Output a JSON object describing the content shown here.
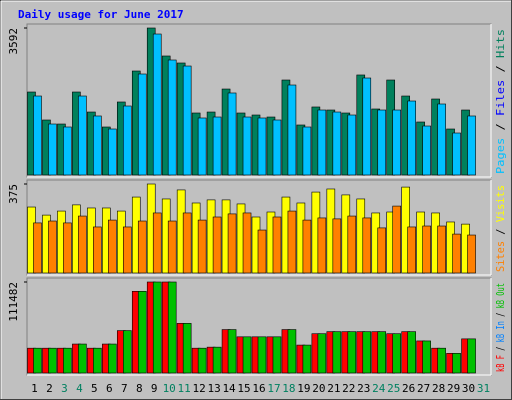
{
  "chart_data": [
    {
      "type": "bar",
      "title": "Daily usage for June 2017",
      "categories": [
        "1",
        "2",
        "3",
        "4",
        "5",
        "6",
        "7",
        "8",
        "9",
        "10",
        "11",
        "12",
        "13",
        "14",
        "15",
        "16",
        "17",
        "18",
        "19",
        "20",
        "21",
        "22",
        "23",
        "24",
        "25",
        "26",
        "27",
        "28",
        "29",
        "30",
        "31"
      ],
      "category_colors": [
        "#000000",
        "#000000",
        "#008060",
        "#008060",
        "#000000",
        "#000000",
        "#000000",
        "#000000",
        "#000000",
        "#008060",
        "#008060",
        "#000000",
        "#000000",
        "#000000",
        "#000000",
        "#000000",
        "#008060",
        "#008060",
        "#000000",
        "#000000",
        "#000000",
        "#000000",
        "#000000",
        "#008060",
        "#008060",
        "#000000",
        "#000000",
        "#000000",
        "#000000",
        "#000000",
        "#008060"
      ],
      "ylim": [
        0,
        3592
      ],
      "yticks": [
        3592
      ],
      "legend_separator": " / ",
      "legend_order": "reverse",
      "series": [
        {
          "name": "Hits",
          "color": "#00805c",
          "values": [
            2028,
            1344,
            1246,
            2028,
            1539,
            1173,
            1784,
            2541,
            3592,
            2908,
            2737,
            1515,
            1539,
            2101,
            1515,
            1466,
            1417,
            2321,
            1222,
            1662,
            1588,
            1515,
            2444,
            1613,
            2321,
            1930,
            1295,
            1857,
            1124,
            1588,
            null
          ]
        },
        {
          "name": "Files",
          "color": "#0000ff",
          "values": [
            null,
            null,
            null,
            null,
            null,
            null,
            null,
            null,
            null,
            null,
            null,
            null,
            null,
            null,
            null,
            null,
            null,
            null,
            null,
            null,
            null,
            null,
            null,
            null,
            null,
            null,
            null,
            null,
            null,
            null,
            null
          ]
        },
        {
          "name": "Pages",
          "color": "#00c0ff",
          "values": [
            1930,
            1246,
            1173,
            1930,
            1442,
            1124,
            1686,
            2468,
            3445,
            2810,
            2663,
            1393,
            1417,
            2004,
            1417,
            1393,
            1344,
            2199,
            1173,
            1588,
            1539,
            1466,
            2370,
            1588,
            1588,
            1808,
            1197,
            1735,
            1026,
            1442,
            null
          ]
        }
      ]
    },
    {
      "type": "bar",
      "ylim": [
        0,
        375
      ],
      "yticks": [
        375
      ],
      "legend_separator": " / ",
      "legend_order": "reverse",
      "series": [
        {
          "name": "Visits",
          "color": "#ffff00",
          "values": [
            278,
            244,
            261,
            287,
            274,
            274,
            261,
            320,
            375,
            312,
            350,
            295,
            308,
            308,
            291,
            236,
            257,
            320,
            295,
            341,
            354,
            329,
            312,
            253,
            257,
            362,
            257,
            253,
            215,
            206,
            null
          ]
        },
        {
          "name": "Sites",
          "color": "#ff8000",
          "values": [
            211,
            219,
            211,
            240,
            194,
            223,
            194,
            219,
            253,
            219,
            253,
            223,
            236,
            249,
            253,
            181,
            236,
            261,
            223,
            232,
            228,
            240,
            232,
            190,
            282,
            194,
            198,
            198,
            164,
            160,
            null
          ]
        }
      ]
    },
    {
      "type": "bar",
      "ylim": [
        0,
        111482
      ],
      "yticks": [
        111482
      ],
      "legend_separator": " / ",
      "legend_order": "forward",
      "series": [
        {
          "name": "kB F",
          "color": "#ff0000",
          "values": [
            30404,
            30404,
            30404,
            35471,
            30404,
            35471,
            51940,
            100078,
            111482,
            111482,
            60808,
            30404,
            31671,
            53207,
            44339,
            44339,
            44339,
            53207,
            34204,
            48139,
            50673,
            50673,
            50673,
            50673,
            48139,
            50673,
            39272,
            30404,
            24070,
            41805,
            null
          ]
        },
        {
          "name": "kB In",
          "color": "#0080ff",
          "values": [
            null,
            null,
            null,
            null,
            null,
            null,
            null,
            null,
            null,
            null,
            null,
            null,
            null,
            null,
            null,
            null,
            null,
            null,
            null,
            null,
            null,
            null,
            null,
            null,
            null,
            null,
            null,
            null,
            null,
            null,
            null
          ]
        },
        {
          "name": "kB Out",
          "color": "#00c000",
          "values": [
            30404,
            30404,
            30404,
            35471,
            30404,
            35471,
            51940,
            100078,
            111482,
            111482,
            60808,
            30404,
            31671,
            53207,
            44339,
            44339,
            44339,
            53207,
            34204,
            48139,
            50673,
            50673,
            50673,
            50673,
            48139,
            50673,
            39272,
            30404,
            24070,
            41805,
            null
          ]
        }
      ]
    }
  ]
}
